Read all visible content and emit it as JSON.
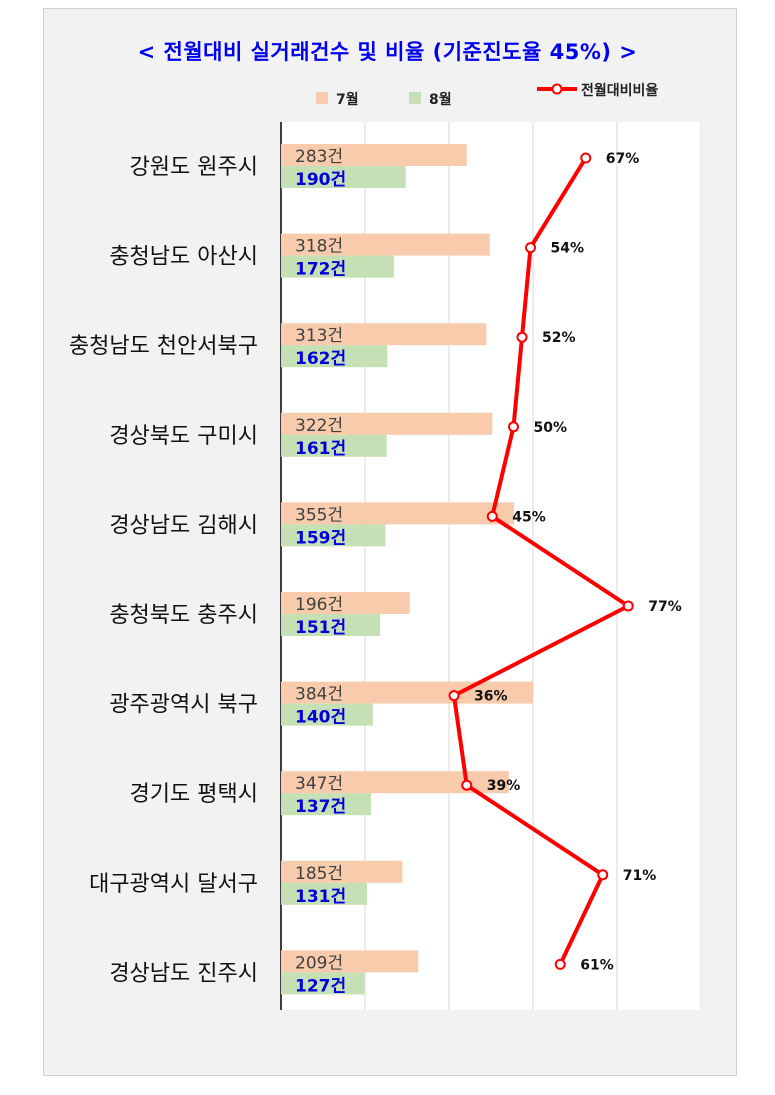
{
  "chart_data": {
    "type": "bar",
    "orientation": "horizontal",
    "title": "< 전월대비 실거래건수 및 비율 (기준진도율 45%) >",
    "categories": [
      "강원도 원주시",
      "충청남도 아산시",
      "충청남도 천안서북구",
      "경상북도 구미시",
      "경상남도 김해시",
      "충청북도 충주시",
      "광주광역시 북구",
      "경기도 평택시",
      "대구광역시 달서구",
      "경상남도 진주시"
    ],
    "series": [
      {
        "name": "7월",
        "values": [
          283,
          318,
          313,
          322,
          355,
          196,
          384,
          347,
          185,
          209
        ],
        "color": "#f8cbad",
        "unit": "건"
      },
      {
        "name": "8월",
        "values": [
          190,
          172,
          162,
          161,
          159,
          151,
          140,
          137,
          131,
          127
        ],
        "color": "#c5e0b4",
        "unit": "건"
      }
    ],
    "line_series": {
      "name": "전월대비비율",
      "values": [
        67,
        54,
        52,
        50,
        45,
        77,
        36,
        39,
        71,
        61
      ],
      "unit": "%",
      "color": "#ff0000"
    },
    "legend_position": "top",
    "grid": true
  }
}
